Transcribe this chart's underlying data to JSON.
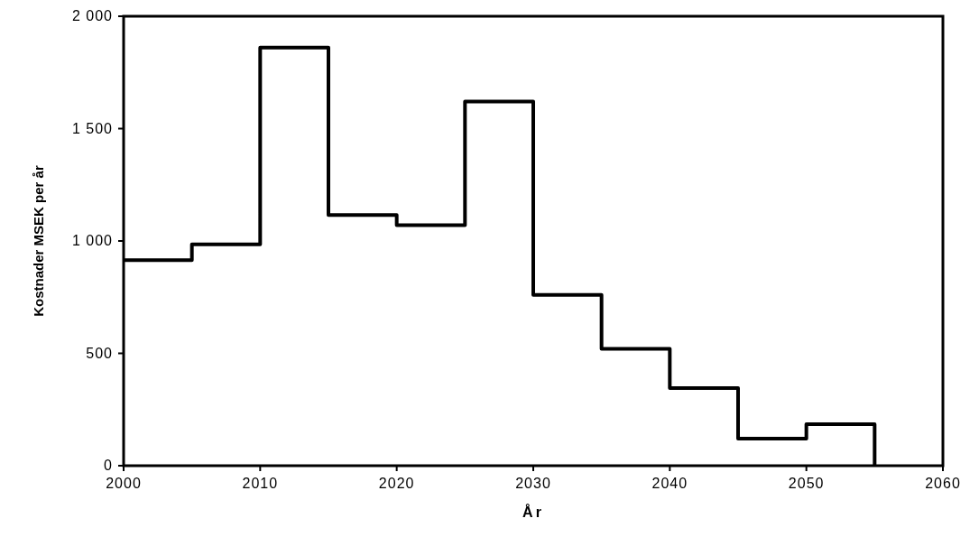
{
  "chart_data": {
    "type": "step",
    "xlabel": "År",
    "ylabel": "Kostnader MSEK per år",
    "x": [
      2000,
      2005,
      2010,
      2015,
      2020,
      2025,
      2030,
      2035,
      2040,
      2045,
      2050,
      2055
    ],
    "series": [
      {
        "color": "#000000",
        "values": [
          915,
          985,
          1860,
          1115,
          1070,
          1620,
          760,
          520,
          345,
          120,
          185,
          0
        ]
      }
    ],
    "xlim": [
      2000,
      2060
    ],
    "xticks": [
      2000,
      2010,
      2020,
      2030,
      2040,
      2050,
      2060
    ],
    "ylim": [
      0,
      2000
    ],
    "yticks": [
      0,
      500,
      {
        "value": 1000,
        "label": "1 000"
      },
      {
        "value": 1500,
        "label": "1 500"
      },
      {
        "value": 2000,
        "label": "2 000"
      }
    ],
    "grid": false
  }
}
